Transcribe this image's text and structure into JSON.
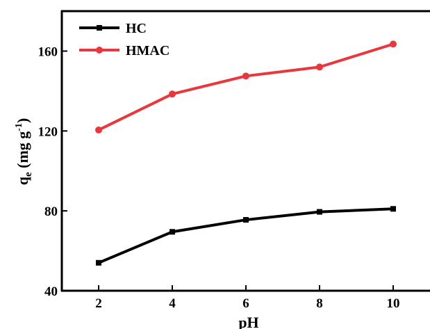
{
  "chart_data": {
    "type": "line",
    "x": [
      2,
      4,
      6,
      8,
      10
    ],
    "series": [
      {
        "name": "HC",
        "values": [
          54,
          69.5,
          75.5,
          79.5,
          81
        ],
        "color": "#000000",
        "marker": "square"
      },
      {
        "name": "HMAC",
        "values": [
          120.5,
          138.5,
          147.5,
          152,
          163.5
        ],
        "color": "#e8383d",
        "marker": "circle"
      }
    ],
    "xlabel": "pH",
    "ylabel": {
      "base": "q",
      "subscript": "e",
      "units_open": " (mg g",
      "superscript": "-1",
      "units_close": ")"
    },
    "xticks": [
      "2",
      "4",
      "6",
      "8",
      "10"
    ],
    "yticks": [
      "40",
      "80",
      "120",
      "160"
    ],
    "xlim": [
      1,
      11
    ],
    "ylim": [
      40,
      180
    ],
    "grid": false,
    "legend_position": "top-left"
  }
}
